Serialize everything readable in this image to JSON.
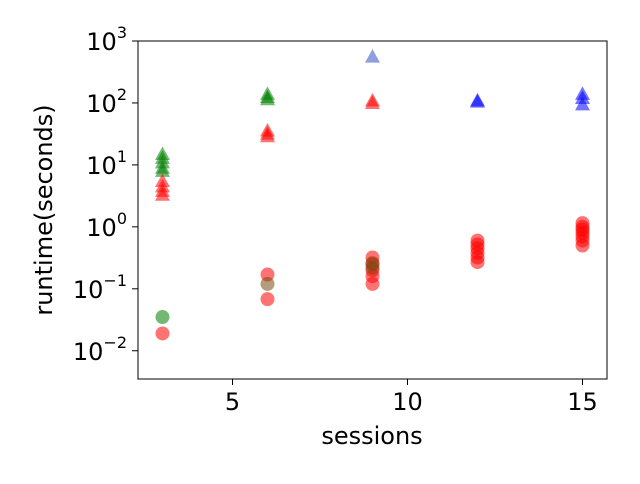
{
  "chart_data": {
    "type": "scatter",
    "title": "",
    "xlabel": "sessions",
    "ylabel": "runtime(seconds)",
    "xlim": [
      2.3,
      15.7
    ],
    "ylim": [
      0.0035,
      1000
    ],
    "yscale": "log",
    "grid": false,
    "legend": "none",
    "x_ticks": [
      {
        "value": 5,
        "label": "5"
      },
      {
        "value": 10,
        "label": "10"
      },
      {
        "value": 15,
        "label": "15"
      }
    ],
    "y_ticks": [
      {
        "value": 0.01,
        "base": "10",
        "exp": "−2"
      },
      {
        "value": 0.1,
        "base": "10",
        "exp": "−1"
      },
      {
        "value": 1,
        "base": "10",
        "exp": "0"
      },
      {
        "value": 10,
        "base": "10",
        "exp": "1"
      },
      {
        "value": 100,
        "base": "10",
        "exp": "2"
      },
      {
        "value": 1000,
        "base": "10",
        "exp": "3"
      }
    ],
    "series": [
      {
        "marker": "triangle",
        "color": "#008000",
        "points": [
          [
            3,
            15
          ],
          [
            3,
            13
          ],
          [
            3,
            11
          ],
          [
            3,
            9
          ],
          [
            3,
            8
          ],
          [
            6,
            140
          ],
          [
            6,
            125
          ],
          [
            6,
            115
          ]
        ]
      },
      {
        "marker": "triangle",
        "color": "#ff0000",
        "points": [
          [
            3,
            5.5
          ],
          [
            3,
            4.5
          ],
          [
            3,
            3.8
          ],
          [
            3,
            3.3
          ],
          [
            6,
            36
          ],
          [
            6,
            32
          ],
          [
            6,
            29
          ],
          [
            9,
            110
          ],
          [
            9,
            100
          ]
        ]
      },
      {
        "marker": "triangle",
        "color": "#3050c0",
        "points": [
          [
            9,
            560
          ]
        ]
      },
      {
        "marker": "triangle",
        "color": "#0000ff",
        "points": [
          [
            12,
            110
          ],
          [
            12,
            105
          ],
          [
            15,
            140
          ],
          [
            15,
            120
          ],
          [
            15,
            95
          ]
        ]
      },
      {
        "marker": "circle",
        "color": "#008000",
        "points": [
          [
            3,
            0.035
          ]
        ]
      },
      {
        "marker": "circle",
        "color": "#ff0000",
        "points": [
          [
            3,
            0.019
          ],
          [
            6,
            0.068
          ],
          [
            6,
            0.17
          ],
          [
            9,
            0.12
          ],
          [
            9,
            0.16
          ],
          [
            9,
            0.2
          ],
          [
            9,
            0.25
          ],
          [
            9,
            0.32
          ],
          [
            12,
            0.27
          ],
          [
            12,
            0.32
          ],
          [
            12,
            0.38
          ],
          [
            12,
            0.45
          ],
          [
            12,
            0.52
          ],
          [
            12,
            0.6
          ],
          [
            15,
            0.5
          ],
          [
            15,
            0.6
          ],
          [
            15,
            0.7
          ],
          [
            15,
            0.8
          ],
          [
            15,
            0.9
          ],
          [
            15,
            1.0
          ],
          [
            15,
            1.15
          ]
        ]
      },
      {
        "marker": "circle",
        "color": "#7a4a10",
        "points": [
          [
            6,
            0.12
          ],
          [
            9,
            0.22
          ],
          [
            9,
            0.26
          ]
        ]
      }
    ]
  }
}
